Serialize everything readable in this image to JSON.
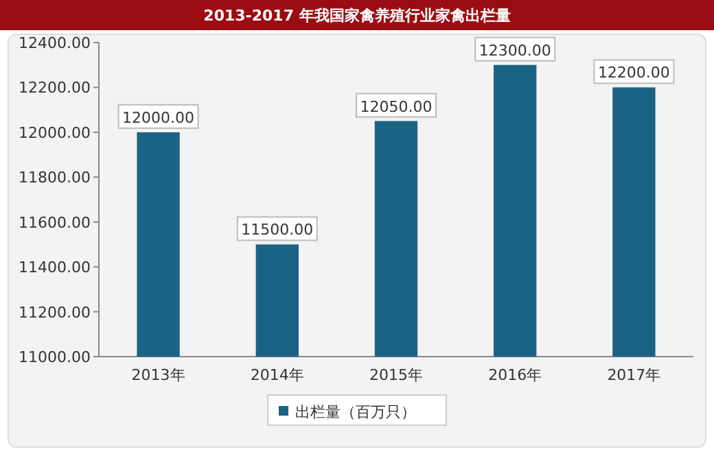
{
  "chart_data": {
    "type": "bar",
    "title": "2013-2017 年我国家禽养殖行业家禽出栏量",
    "categories": [
      "2013年",
      "2014年",
      "2015年",
      "2016年",
      "2017年"
    ],
    "series": [
      {
        "name": "出栏量（百万只）",
        "color": "#1b6384",
        "values": [
          12000,
          11500,
          12050,
          12300,
          12200
        ],
        "value_labels": [
          "12000.00",
          "11500.00",
          "12050.00",
          "12300.00",
          "12200.00"
        ]
      }
    ],
    "ylim": [
      11000,
      12400
    ],
    "yticks": [
      {
        "value": 11000,
        "label": "11000.00"
      },
      {
        "value": 11200,
        "label": "11200.00"
      },
      {
        "value": 11400,
        "label": "11400.00"
      },
      {
        "value": 11600,
        "label": "11600.00"
      },
      {
        "value": 11800,
        "label": "11800.00"
      },
      {
        "value": 12000,
        "label": "12000.00"
      },
      {
        "value": 12200,
        "label": "12200.00"
      },
      {
        "value": 12400,
        "label": "12400.00"
      }
    ],
    "legend": "bottom",
    "grid": false
  }
}
